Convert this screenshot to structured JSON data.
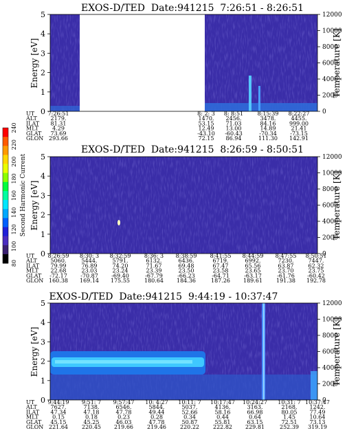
{
  "figure": {
    "colorbar": {
      "label": "Second Harmonic Current",
      "ticks": [
        "240",
        "220",
        "200",
        "180",
        "160",
        "140",
        "120",
        "100",
        "80"
      ],
      "colors": [
        "#ff0000",
        "#ff5a00",
        "#ff9a00",
        "#ffd700",
        "#e8ff00",
        "#8cff00",
        "#00ff3c",
        "#00ffa0",
        "#00e6ff",
        "#00a8ff",
        "#0060ff",
        "#2020d8",
        "#4a2cc0",
        "#3a2070",
        "#000000"
      ]
    },
    "colors": {
      "background": "#3a2da8",
      "text": "#000000",
      "marker": "#ffffff"
    }
  },
  "chart_data": [
    {
      "type": "heatmap",
      "title": "EXOS-D/TED  Date:941215  7:26:51 - 8:26:51",
      "ylabel": "Energy [eV]",
      "y2label": "Temperature [K]",
      "ylim": [
        0,
        5
      ],
      "y2lim": [
        0,
        12000
      ],
      "y_ticks": [
        "0",
        "1",
        "2",
        "3",
        "4",
        "5"
      ],
      "y2_ticks": [
        "0",
        "2000",
        "4000",
        "6000",
        "8000",
        "10000",
        "12000"
      ],
      "data_gap": [
        0.11,
        0.65
      ],
      "orbit_table": {
        "row_labels": [
          "UT",
          "ALT",
          "ILAT",
          "MLT",
          "GLAT",
          "GLON"
        ],
        "columns": [
          {
            "UT": "7:26:51",
            "ALT": "2179.",
            "ILAT": "81.31",
            "MLT": "4.29",
            "GLAT": "73.69",
            "GLON": "293.66"
          },
          {
            "UT": "8: 2: 3",
            "ALT": "1470.",
            "ILAT": "53.15",
            "MLT": "12.49",
            "GLAT": "-43.10",
            "GLON": "72.15"
          },
          {
            "UT": "8: 8:51",
            "ALT": "2456.",
            "ILAT": "71.03",
            "MLT": "13.00",
            "GLAT": "-60.43",
            "GLON": "86.94"
          },
          {
            "UT": "8:15:39",
            "ALT": "3478.",
            "ILAT": "84.16",
            "MLT": "14.89",
            "GLAT": "-70.34",
            "GLON": "111.30"
          },
          {
            "UT": "8:22:27",
            "ALT": "4455.",
            "ILAT": "999.00",
            "MLT": "21.41",
            "GLAT": "-73.15",
            "GLON": "142.91"
          }
        ]
      }
    },
    {
      "type": "heatmap",
      "title": "EXOS-D/TED  Date:941215  8:26:59 - 8:50:51",
      "ylabel": "Energy [eV]",
      "y2label": "Temperature [K]",
      "ylim": [
        0,
        5
      ],
      "y2lim": [
        0,
        12000
      ],
      "y_ticks": [
        "0",
        "1",
        "2",
        "3",
        "4",
        "5"
      ],
      "y2_ticks": [
        "0",
        "2000",
        "4000",
        "6000",
        "8000",
        "10000",
        "12000"
      ],
      "orbit_table": {
        "row_labels": [
          "UT",
          "ALT",
          "ILAT",
          "MLT",
          "GLAT",
          "GLON"
        ],
        "columns": [
          {
            "UT": "8:26:59",
            "ALT": "5060.",
            "ILAT": "79.99",
            "MLT": "22.68",
            "GLAT": "-72.17",
            "GLON": "160.38"
          },
          {
            "UT": "8:30: 3",
            "ALT": "5444.",
            "ILAT": "76.89",
            "MLT": "23.03",
            "GLAT": "-70.87",
            "GLON": "169.14"
          },
          {
            "UT": "8:32:59",
            "ALT": "5791.",
            "ILAT": "74.20",
            "MLT": "23.24",
            "GLAT": "-69.40",
            "GLON": "175.55"
          },
          {
            "UT": "8:36: 3",
            "ALT": "6132.",
            "ILAT": "71.67",
            "MLT": "23.39",
            "GLAT": "-67.79",
            "GLON": "180.64"
          },
          {
            "UT": "8:38:59",
            "ALT": "6436.",
            "ILAT": "69.48",
            "MLT": "23.50",
            "GLAT": "-66.23",
            "GLON": "184.36"
          },
          {
            "UT": "8:41:55",
            "ALT": "6719.",
            "ILAT": "67.47",
            "MLT": "23.58",
            "GLAT": "-64.71",
            "GLON": "187.26"
          },
          {
            "UT": "8:44:59",
            "ALT": "6992.",
            "ILAT": "65.56",
            "MLT": "23.65",
            "GLAT": "-63.17",
            "GLON": "189.61"
          },
          {
            "UT": "8:47:55",
            "ALT": "7230.",
            "ILAT": "63.87",
            "MLT": "23.70",
            "GLAT": "-61.76",
            "GLON": "191.38"
          },
          {
            "UT": "8:50:51",
            "ALT": "7447.",
            "ILAT": "62.32",
            "MLT": "23.75",
            "GLAT": "-60.42",
            "GLON": "192.78"
          }
        ]
      }
    },
    {
      "type": "heatmap",
      "title": "EXOS-D/TED  Date:941215  9:44:19 - 10:37:47",
      "ylabel": "Energy [eV]",
      "y2label": "Temperature [K]",
      "ylim": [
        0,
        5
      ],
      "y2lim": [
        0,
        12000
      ],
      "y_ticks": [
        "0",
        "1",
        "2",
        "3",
        "4",
        "5"
      ],
      "y2_ticks": [
        "0",
        "2000",
        "4000",
        "6000",
        "8000",
        "10000",
        "12000"
      ],
      "orbit_table": {
        "row_labels": [
          "UT",
          "ALT",
          "ILAT",
          "MLT",
          "GLAT",
          "GLON"
        ],
        "columns": [
          {
            "UT": "9:44:19",
            "ALT": "7627.",
            "ILAT": "47.34",
            "MLT": "0.15",
            "GLAT": "45.15",
            "GLON": "221.64"
          },
          {
            "UT": "9:51: 7",
            "ALT": "7138.",
            "ILAT": "47.18",
            "MLT": "0.18",
            "GLAT": "45.25",
            "GLON": "220.45"
          },
          {
            "UT": "9:57:47",
            "ALT": "6546.",
            "ILAT": "47.78",
            "MLT": "0.23",
            "GLAT": "46.03",
            "GLON": "219.66"
          },
          {
            "UT": "10: 4:27",
            "ALT": "5844.",
            "ILAT": "49.44",
            "MLT": "0.28",
            "GLAT": "47.78",
            "GLON": "219.46"
          },
          {
            "UT": "10:11: 7",
            "ALT": "5037.",
            "ILAT": "52.66",
            "MLT": "0.34",
            "GLAT": "50.87",
            "GLON": "220.22"
          },
          {
            "UT": "10:17:47",
            "ALT": "4136.",
            "ILAT": "58.16",
            "MLT": "0.44",
            "GLAT": "55.81",
            "GLON": "222.82"
          },
          {
            "UT": "10:24:27",
            "ALT": "3163.",
            "ILAT": "66.98",
            "MLT": "0.64",
            "GLAT": "63.15",
            "GLON": "229.81"
          },
          {
            "UT": "10:31: 7",
            "ALT": "2168.",
            "ILAT": "80.05",
            "MLT": "1.45",
            "GLAT": "72.51",
            "GLON": "252.39"
          },
          {
            "UT": "10:37:47",
            "ALT": "1242.",
            "ILAT": "77.49",
            "MLT": "10.64",
            "GLAT": "73.13",
            "GLON": "319.19"
          }
        ]
      }
    }
  ]
}
